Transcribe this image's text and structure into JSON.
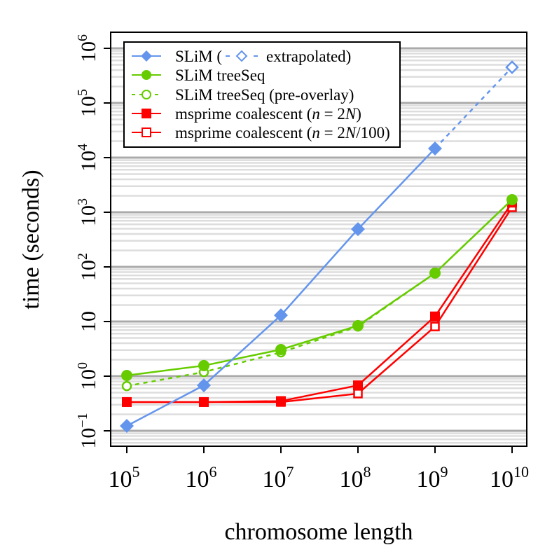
{
  "chart_data": {
    "type": "line",
    "xlabel": "chromosome length",
    "ylabel": "time (seconds)",
    "x_scale": "log",
    "y_scale": "log",
    "xlim": [
      100000,
      10000000000
    ],
    "ylim": [
      0.1,
      1000000
    ],
    "grid": true,
    "legend_position": "top-left",
    "x": [
      100000,
      1000000,
      10000000,
      100000000,
      1000000000,
      10000000000
    ],
    "x_tick_labels": [
      {
        "base": "10",
        "exp": "5"
      },
      {
        "base": "10",
        "exp": "6"
      },
      {
        "base": "10",
        "exp": "7"
      },
      {
        "base": "10",
        "exp": "8"
      },
      {
        "base": "10",
        "exp": "9"
      },
      {
        "base": "10",
        "exp": "10"
      }
    ],
    "y_ticks": [
      0.1,
      1,
      10,
      100,
      1000,
      10000,
      100000,
      1000000
    ],
    "y_tick_labels": [
      {
        "base": "10",
        "exp": "−1"
      },
      {
        "base": "10",
        "exp": "0"
      },
      {
        "base": "10",
        "exp": ""
      },
      {
        "base": "10",
        "exp": "2"
      },
      {
        "base": "10",
        "exp": "3"
      },
      {
        "base": "10",
        "exp": "4"
      },
      {
        "base": "10",
        "exp": "5"
      },
      {
        "base": "10",
        "exp": "6"
      }
    ],
    "series": [
      {
        "name": "SLiM",
        "legend_extra": "extrapolated",
        "color": "#6495ED",
        "marker": "diamond-filled",
        "line": "solid",
        "values": [
          0.123,
          0.68,
          13,
          490,
          14700,
          null
        ],
        "extrapolated": [
          null,
          null,
          null,
          null,
          14700,
          450000
        ]
      },
      {
        "name": "SLiM treeSeq",
        "color": "#66CC00",
        "marker": "circle-filled",
        "line": "solid",
        "values": [
          1.03,
          1.56,
          3.07,
          8.4,
          77,
          1700
        ]
      },
      {
        "name": "SLiM treeSeq (pre-overlay)",
        "color": "#66CC00",
        "marker": "circle-open",
        "line": "dashed",
        "values": [
          0.66,
          1.19,
          2.73,
          8.1,
          77,
          1700
        ]
      },
      {
        "name": "msprime coalescent (n = 2N)",
        "color": "#FF0000",
        "marker": "square-filled",
        "line": "solid",
        "values": [
          0.336,
          0.336,
          0.35,
          0.68,
          12.4,
          1500
        ]
      },
      {
        "name": "msprime coalescent (n = 2N/100)",
        "color": "#FF0000",
        "marker": "square-open",
        "line": "solid",
        "values": [
          0.336,
          0.336,
          0.336,
          0.48,
          8.1,
          1230
        ]
      }
    ],
    "legend": {
      "slim_prefix": "SLiM (",
      "slim_suffix": "extrapolated)",
      "treeseq": "SLiM treeSeq",
      "preoverlay": "SLiM treeSeq (pre-overlay)",
      "ms1_prefix": "msprime coalescent (",
      "ms1_n": "n",
      "ms1_mid": " = 2",
      "ms1_N": "N",
      "ms1_suffix": ")",
      "ms2_prefix": "msprime coalescent (",
      "ms2_n": "n",
      "ms2_mid": " = 2",
      "ms2_N": "N",
      "ms2_suffix": "/100)"
    }
  }
}
